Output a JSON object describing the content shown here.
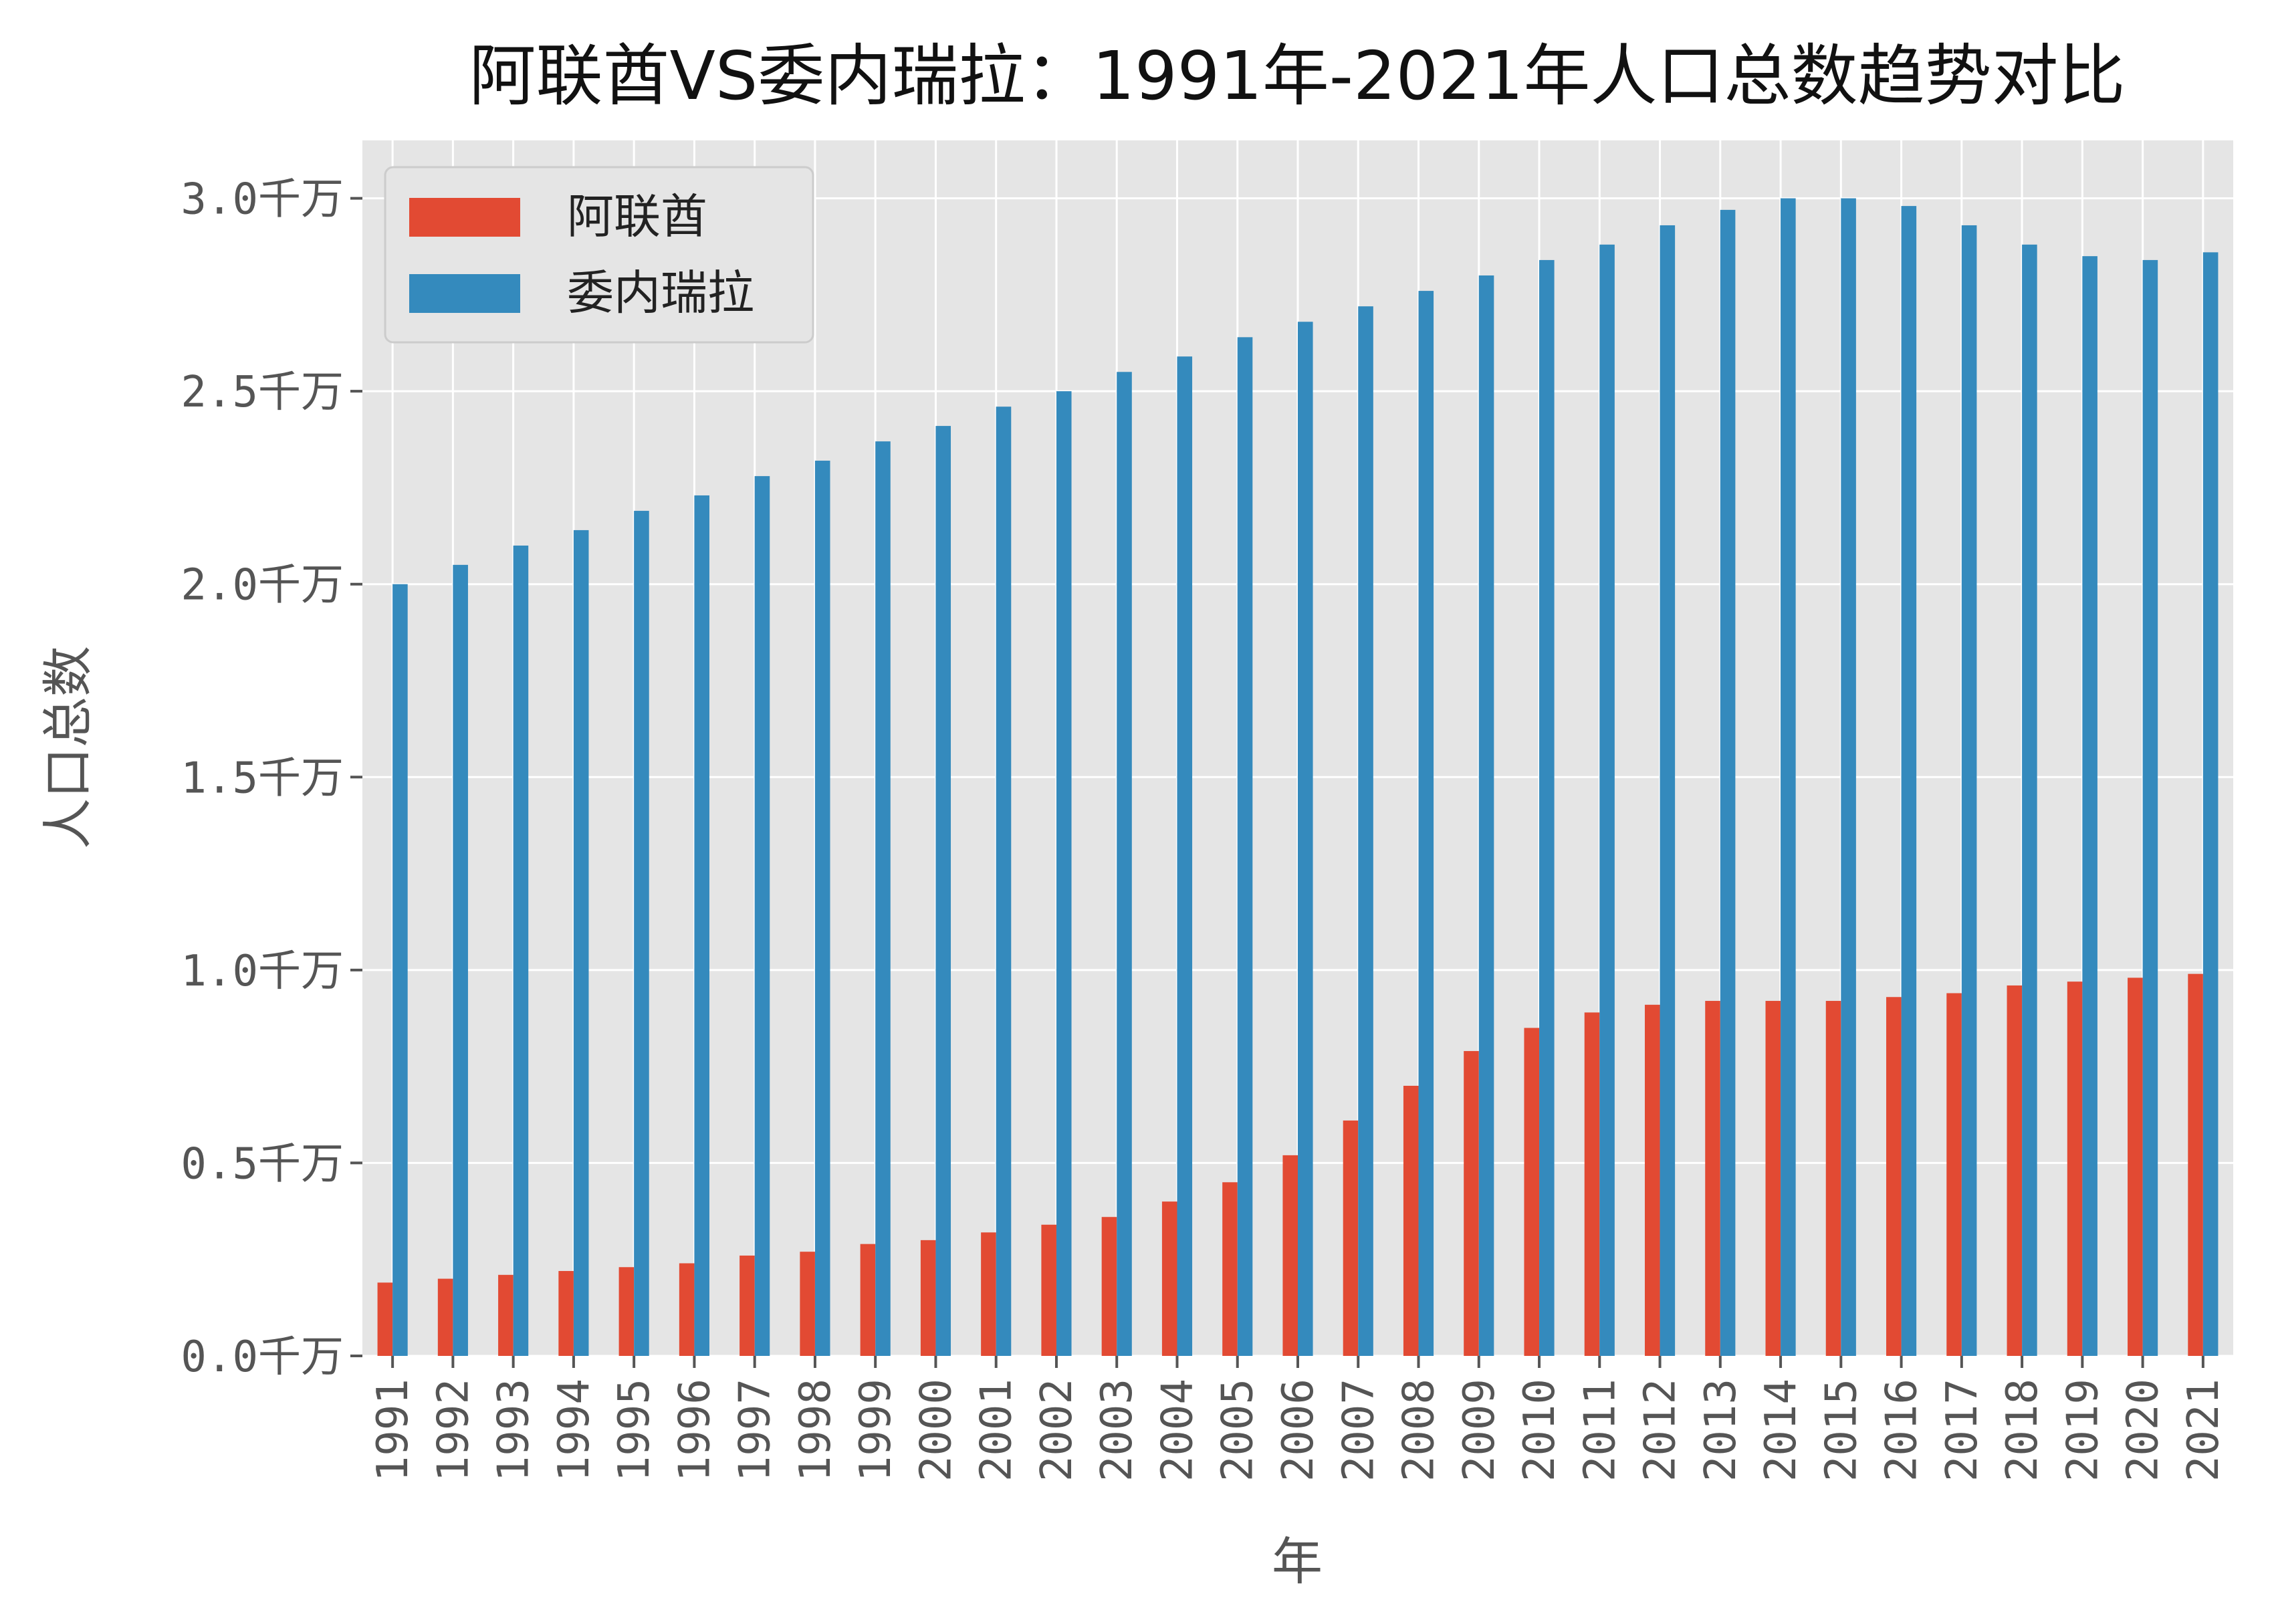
{
  "chart_data": {
    "type": "bar",
    "title": "阿联酋VS委内瑞拉：1991年-2021年人口总数趋势对比",
    "xlabel": "年",
    "ylabel": "人口总数",
    "ylim": [
      0,
      3.15
    ],
    "y_ticks": [
      {
        "value": 0.0,
        "label": "0.0千万"
      },
      {
        "value": 0.5,
        "label": "0.5千万"
      },
      {
        "value": 1.0,
        "label": "1.0千万"
      },
      {
        "value": 1.5,
        "label": "1.5千万"
      },
      {
        "value": 2.0,
        "label": "2.0千万"
      },
      {
        "value": 2.5,
        "label": "2.5千万"
      },
      {
        "value": 3.0,
        "label": "3.0千万"
      }
    ],
    "grid": true,
    "legend_position": "top-left",
    "categories": [
      "1991",
      "1992",
      "1993",
      "1994",
      "1995",
      "1996",
      "1997",
      "1998",
      "1999",
      "2000",
      "2001",
      "2002",
      "2003",
      "2004",
      "2005",
      "2006",
      "2007",
      "2008",
      "2009",
      "2010",
      "2011",
      "2012",
      "2013",
      "2014",
      "2015",
      "2016",
      "2017",
      "2018",
      "2019",
      "2020",
      "2021"
    ],
    "series": [
      {
        "name": "阿联酋",
        "color": "#E24A33",
        "values": [
          0.19,
          0.2,
          0.21,
          0.22,
          0.23,
          0.24,
          0.26,
          0.27,
          0.29,
          0.3,
          0.32,
          0.34,
          0.36,
          0.4,
          0.45,
          0.52,
          0.61,
          0.7,
          0.79,
          0.85,
          0.89,
          0.91,
          0.92,
          0.92,
          0.92,
          0.93,
          0.94,
          0.96,
          0.97,
          0.98,
          0.99
        ]
      },
      {
        "name": "委内瑞拉",
        "color": "#348ABD",
        "values": [
          2.0,
          2.05,
          2.1,
          2.14,
          2.19,
          2.23,
          2.28,
          2.32,
          2.37,
          2.41,
          2.46,
          2.5,
          2.55,
          2.59,
          2.64,
          2.68,
          2.72,
          2.76,
          2.8,
          2.84,
          2.88,
          2.93,
          2.97,
          3.0,
          3.0,
          2.98,
          2.93,
          2.88,
          2.85,
          2.84,
          2.86
        ]
      }
    ]
  }
}
